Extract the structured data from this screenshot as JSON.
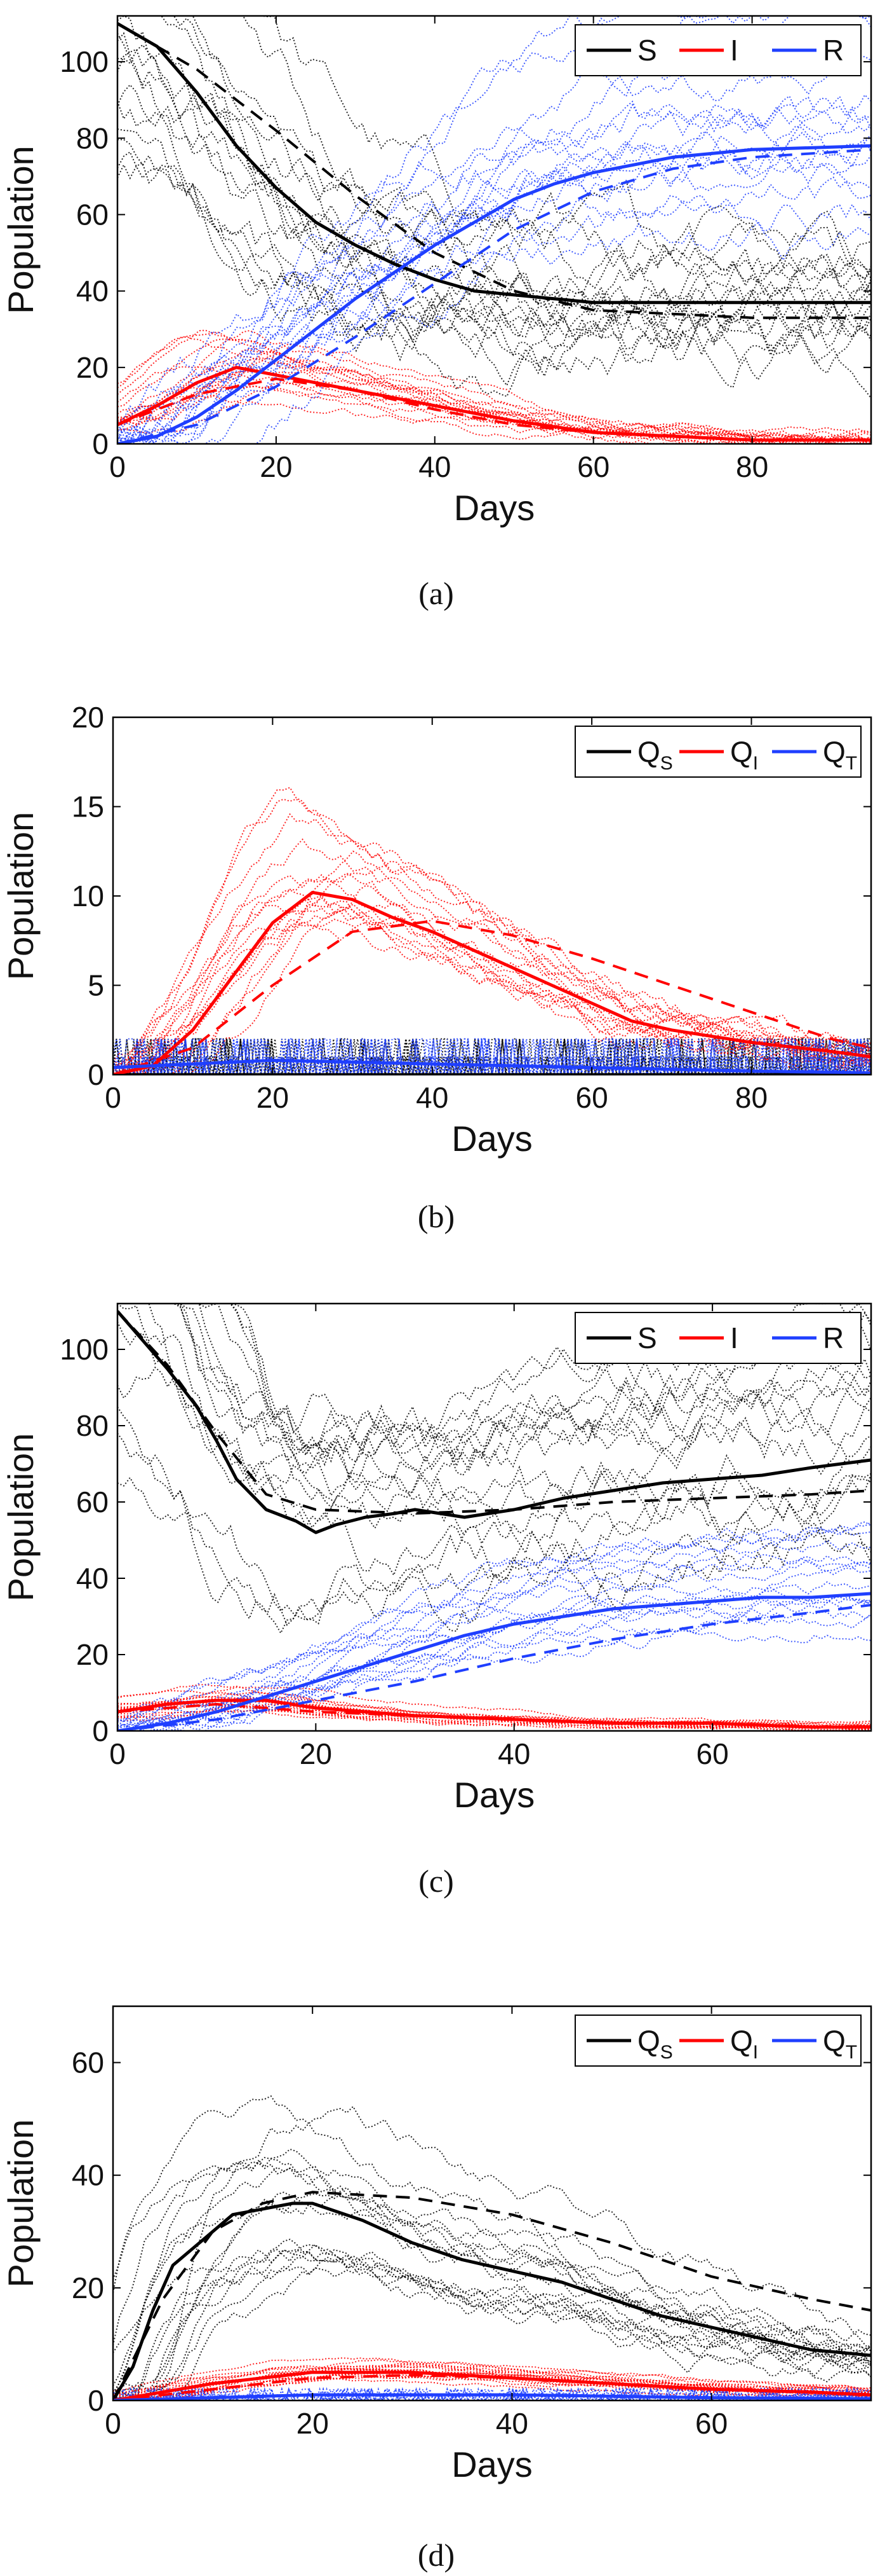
{
  "colors": {
    "S": "#000000",
    "I": "#ff0000",
    "R": "#1f3fff"
  },
  "chart_data": [
    {
      "type": "line",
      "caption": "(a)",
      "xlabel": "Days",
      "ylabel": "Population",
      "xlim": [
        0,
        95
      ],
      "ylim": [
        0,
        112
      ],
      "xticks": [
        "0",
        "20",
        "40",
        "60",
        "80"
      ],
      "yticks": [
        "0",
        "20",
        "40",
        "60",
        "80",
        "100"
      ],
      "legend": {
        "position": "top-right",
        "entries": [
          "S",
          "I",
          "R"
        ]
      },
      "series": [
        {
          "name": "S",
          "color": "S",
          "style": "solid",
          "x": [
            0,
            5,
            10,
            15,
            20,
            25,
            30,
            35,
            40,
            45,
            50,
            55,
            60,
            70,
            80,
            95
          ],
          "values": [
            110,
            104,
            92,
            78,
            67,
            58,
            52,
            47,
            43,
            40,
            39,
            38,
            37,
            37,
            37,
            37
          ]
        },
        {
          "name": "S mean",
          "color": "S",
          "style": "dashed",
          "x": [
            0,
            10,
            20,
            30,
            40,
            50,
            60,
            70,
            80,
            95
          ],
          "values": [
            110,
            98,
            82,
            65,
            50,
            40,
            35,
            34,
            33,
            33
          ]
        },
        {
          "name": "I",
          "color": "I",
          "style": "solid",
          "x": [
            0,
            5,
            10,
            15,
            20,
            25,
            30,
            40,
            50,
            60,
            70,
            80,
            95
          ],
          "values": [
            5,
            10,
            16,
            20,
            18,
            16,
            14,
            10,
            6,
            3,
            2,
            1,
            1
          ]
        },
        {
          "name": "I mean",
          "color": "I",
          "style": "dashed",
          "x": [
            0,
            10,
            20,
            30,
            40,
            50,
            60,
            70,
            80,
            95
          ],
          "values": [
            5,
            13,
            17,
            14,
            9,
            5,
            3,
            2,
            1,
            1
          ]
        },
        {
          "name": "R",
          "color": "R",
          "style": "solid",
          "x": [
            0,
            5,
            10,
            15,
            20,
            25,
            30,
            35,
            40,
            45,
            50,
            55,
            60,
            70,
            80,
            95
          ],
          "values": [
            0,
            2,
            7,
            14,
            22,
            30,
            38,
            45,
            52,
            58,
            64,
            68,
            71,
            75,
            77,
            78
          ]
        },
        {
          "name": "R mean",
          "color": "R",
          "style": "dashed",
          "x": [
            0,
            10,
            20,
            30,
            40,
            50,
            60,
            70,
            80,
            95
          ],
          "values": [
            0,
            5,
            15,
            28,
            42,
            56,
            66,
            72,
            75,
            77
          ]
        }
      ]
    },
    {
      "type": "line",
      "caption": "(b)",
      "xlabel": "Days",
      "ylabel": "Population",
      "xlim": [
        0,
        95
      ],
      "ylim": [
        0,
        20
      ],
      "xticks": [
        "0",
        "20",
        "40",
        "60",
        "80"
      ],
      "yticks": [
        "0",
        "5",
        "10",
        "15",
        "20"
      ],
      "legend": {
        "position": "top-right",
        "entries": [
          "QS",
          "QI",
          "QT"
        ]
      },
      "series": [
        {
          "name": "QS",
          "color": "S",
          "style": "solid",
          "x": [
            0,
            95
          ],
          "values": [
            0,
            0
          ]
        },
        {
          "name": "QI",
          "color": "I",
          "style": "solid",
          "x": [
            0,
            5,
            10,
            15,
            20,
            25,
            30,
            35,
            40,
            45,
            50,
            55,
            60,
            65,
            70,
            80,
            90,
            95
          ],
          "values": [
            0,
            0.5,
            2.5,
            5.5,
            8.5,
            10.2,
            9.8,
            8.8,
            8,
            7,
            6,
            5,
            4,
            3,
            2.5,
            1.8,
            1.3,
            1
          ]
        },
        {
          "name": "QI mean",
          "color": "I",
          "style": "dashed",
          "x": [
            0,
            10,
            20,
            30,
            40,
            50,
            60,
            70,
            80,
            90,
            95
          ],
          "values": [
            0,
            1.5,
            5,
            8,
            8.6,
            7.8,
            6.5,
            5,
            3.5,
            2,
            1.5
          ]
        },
        {
          "name": "QT",
          "color": "R",
          "style": "solid",
          "x": [
            0,
            20,
            40,
            60,
            80,
            95
          ],
          "values": [
            0.4,
            0.8,
            0.6,
            0.4,
            0.2,
            0.1
          ]
        }
      ]
    },
    {
      "type": "line",
      "caption": "(c)",
      "xlabel": "Days",
      "ylabel": "Population",
      "xlim": [
        0,
        76
      ],
      "ylim": [
        0,
        112
      ],
      "xticks": [
        "0",
        "20",
        "40",
        "60"
      ],
      "yticks": [
        "0",
        "20",
        "40",
        "60",
        "80",
        "100"
      ],
      "legend": {
        "position": "top-right",
        "entries": [
          "S",
          "I",
          "R"
        ]
      },
      "series": [
        {
          "name": "S",
          "color": "S",
          "style": "solid",
          "x": [
            0,
            2,
            5,
            8,
            10,
            12,
            15,
            18,
            20,
            22,
            25,
            28,
            30,
            35,
            40,
            45,
            50,
            55,
            60,
            65,
            70,
            76
          ],
          "values": [
            110,
            104,
            95,
            85,
            76,
            66,
            58,
            55,
            52,
            54,
            56,
            57,
            58,
            56,
            58,
            61,
            63,
            65,
            66,
            67,
            69,
            71
          ]
        },
        {
          "name": "S mean",
          "color": "S",
          "style": "dashed",
          "x": [
            0,
            5,
            10,
            15,
            20,
            30,
            40,
            50,
            60,
            70,
            76
          ],
          "values": [
            110,
            96,
            78,
            62,
            58,
            57,
            58,
            60,
            61,
            62,
            63
          ]
        },
        {
          "name": "I",
          "color": "I",
          "style": "solid",
          "x": [
            0,
            5,
            10,
            15,
            20,
            30,
            40,
            50,
            60,
            70,
            76
          ],
          "values": [
            5,
            7,
            8,
            8,
            6,
            4,
            3,
            2,
            2,
            1,
            1
          ]
        },
        {
          "name": "I mean",
          "color": "I",
          "style": "dashed",
          "x": [
            0,
            5,
            10,
            15,
            20,
            30,
            40,
            50,
            60,
            70,
            76
          ],
          "values": [
            5,
            6,
            7,
            6,
            5,
            4,
            3,
            2,
            2,
            1,
            1
          ]
        },
        {
          "name": "R",
          "color": "R",
          "style": "solid",
          "x": [
            0,
            5,
            10,
            15,
            20,
            25,
            30,
            35,
            40,
            45,
            50,
            55,
            60,
            65,
            70,
            76
          ],
          "values": [
            0,
            2,
            5,
            9,
            13,
            17,
            21,
            25,
            28,
            30,
            32,
            33,
            34,
            35,
            35,
            36
          ]
        },
        {
          "name": "R mean",
          "color": "R",
          "style": "dashed",
          "x": [
            0,
            10,
            20,
            30,
            40,
            50,
            60,
            70,
            76
          ],
          "values": [
            0,
            3,
            8,
            13,
            19,
            24,
            28,
            31,
            33
          ]
        }
      ]
    },
    {
      "type": "line",
      "caption": "(d)",
      "xlabel": "Days",
      "ylabel": "Population",
      "xlim": [
        0,
        76
      ],
      "ylim": [
        0,
        70
      ],
      "xticks": [
        "0",
        "20",
        "40",
        "60"
      ],
      "yticks": [
        "0",
        "20",
        "40",
        "60"
      ],
      "legend": {
        "position": "top-right",
        "entries": [
          "QS",
          "QI",
          "QT"
        ]
      },
      "series": [
        {
          "name": "QS",
          "color": "S",
          "style": "solid",
          "x": [
            0,
            2,
            4,
            6,
            8,
            10,
            12,
            15,
            18,
            20,
            25,
            30,
            35,
            40,
            45,
            50,
            55,
            60,
            65,
            70,
            76
          ],
          "values": [
            0,
            6,
            16,
            24,
            27,
            30,
            33,
            34,
            35,
            35,
            32,
            28,
            25,
            23,
            21,
            18,
            15,
            13,
            11,
            9,
            8
          ]
        },
        {
          "name": "QS mean",
          "color": "S",
          "style": "dashed",
          "x": [
            0,
            5,
            10,
            15,
            20,
            30,
            40,
            50,
            60,
            70,
            76
          ],
          "values": [
            0,
            18,
            30,
            35,
            37,
            36,
            33,
            28,
            22,
            18,
            16
          ]
        },
        {
          "name": "QI",
          "color": "I",
          "style": "solid",
          "x": [
            0,
            10,
            20,
            30,
            40,
            50,
            60,
            70,
            76
          ],
          "values": [
            0,
            3,
            5,
            5,
            4,
            3,
            2,
            1.5,
            1
          ]
        },
        {
          "name": "QI mean",
          "color": "I",
          "style": "dashed",
          "x": [
            0,
            10,
            20,
            30,
            40,
            50,
            60,
            70,
            76
          ],
          "values": [
            0,
            2,
            4,
            4.5,
            4,
            3,
            2,
            1.5,
            1
          ]
        },
        {
          "name": "QT",
          "color": "R",
          "style": "solid",
          "x": [
            0,
            20,
            40,
            60,
            76
          ],
          "values": [
            0,
            1,
            1,
            0.5,
            0.3
          ]
        }
      ]
    }
  ]
}
